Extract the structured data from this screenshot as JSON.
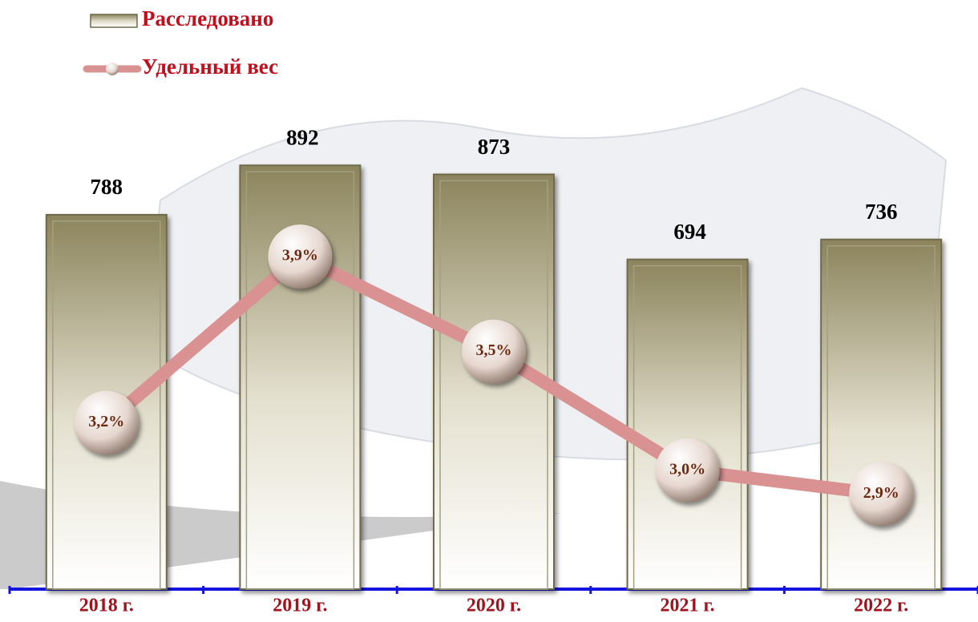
{
  "chart_data": {
    "type": "bar",
    "categories": [
      "2018 г.",
      "2019 г.",
      "2020 г.",
      "2021 г.",
      "2022 г."
    ],
    "series": [
      {
        "name": "Расследовано",
        "type": "bar",
        "color": "#8b845c",
        "values": [
          788,
          892,
          873,
          694,
          736
        ]
      },
      {
        "name": "Удельный вес",
        "type": "line",
        "axis": "y2",
        "color": "#d99191",
        "values": [
          3.2,
          3.9,
          3.5,
          3.0,
          2.9
        ],
        "value_labels": [
          "3,2%",
          "3,9%",
          "3,5%",
          "3,0%",
          "2,9%"
        ]
      }
    ],
    "ylim": [
      0,
      1100
    ],
    "y2lim": [
      2.5,
      4.7
    ],
    "legend": "upper left"
  }
}
